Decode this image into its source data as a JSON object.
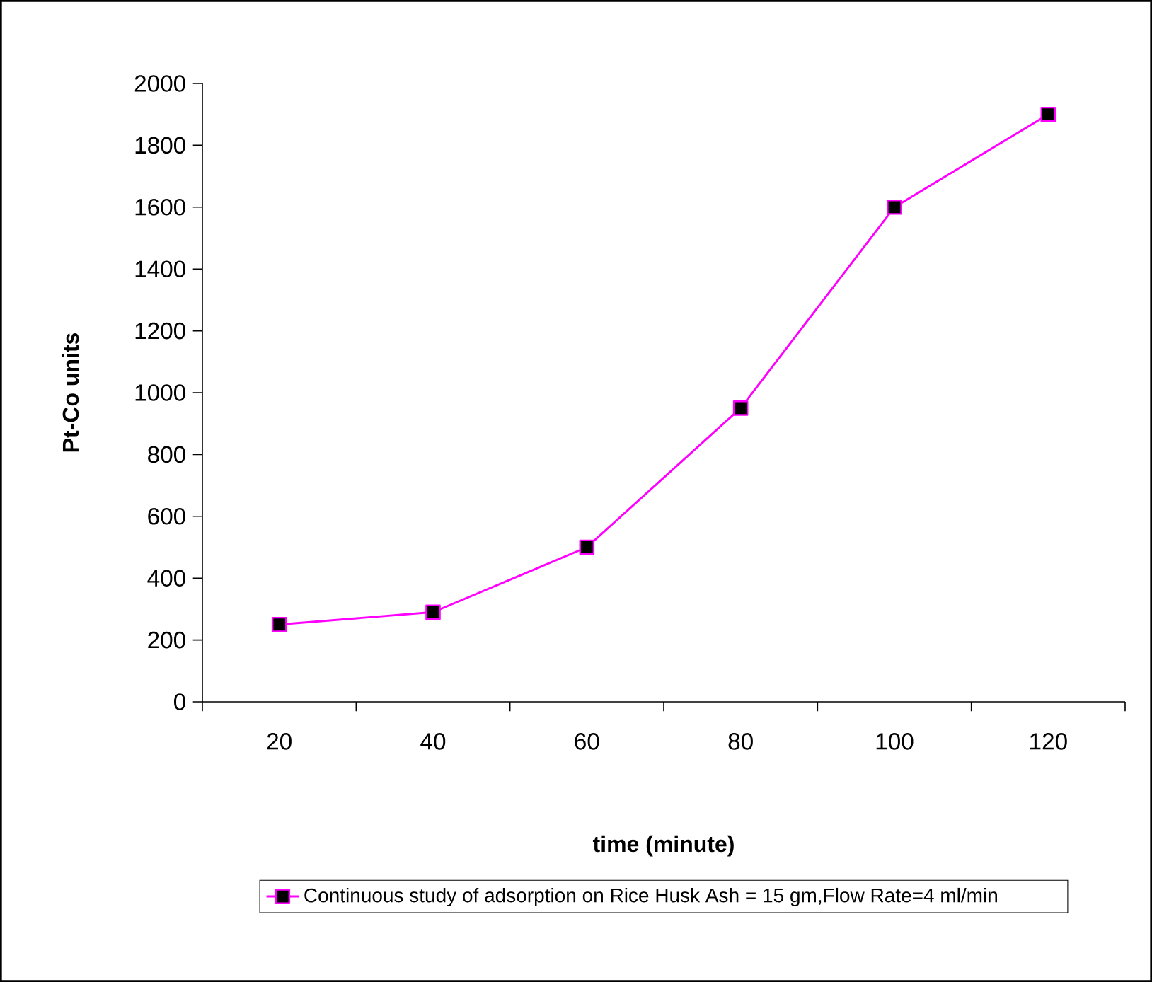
{
  "chart_data": {
    "type": "line",
    "categories": [
      "20",
      "40",
      "60",
      "80",
      "100",
      "120"
    ],
    "series": [
      {
        "name": "Continuous study of adsorption on Rice Husk Ash = 15 gm,Flow Rate=4 ml/min",
        "color": "#ff00ff",
        "values": [
          250,
          290,
          500,
          950,
          1600,
          1900
        ]
      }
    ],
    "xlabel": "time (minute)",
    "ylabel": "Pt-Co units",
    "ylim": [
      0,
      2000
    ],
    "yticks": [
      0,
      200,
      400,
      600,
      800,
      1000,
      1200,
      1400,
      1600,
      1800,
      2000
    ],
    "legend": "bottom",
    "marker": "square",
    "line_style": "solid"
  }
}
